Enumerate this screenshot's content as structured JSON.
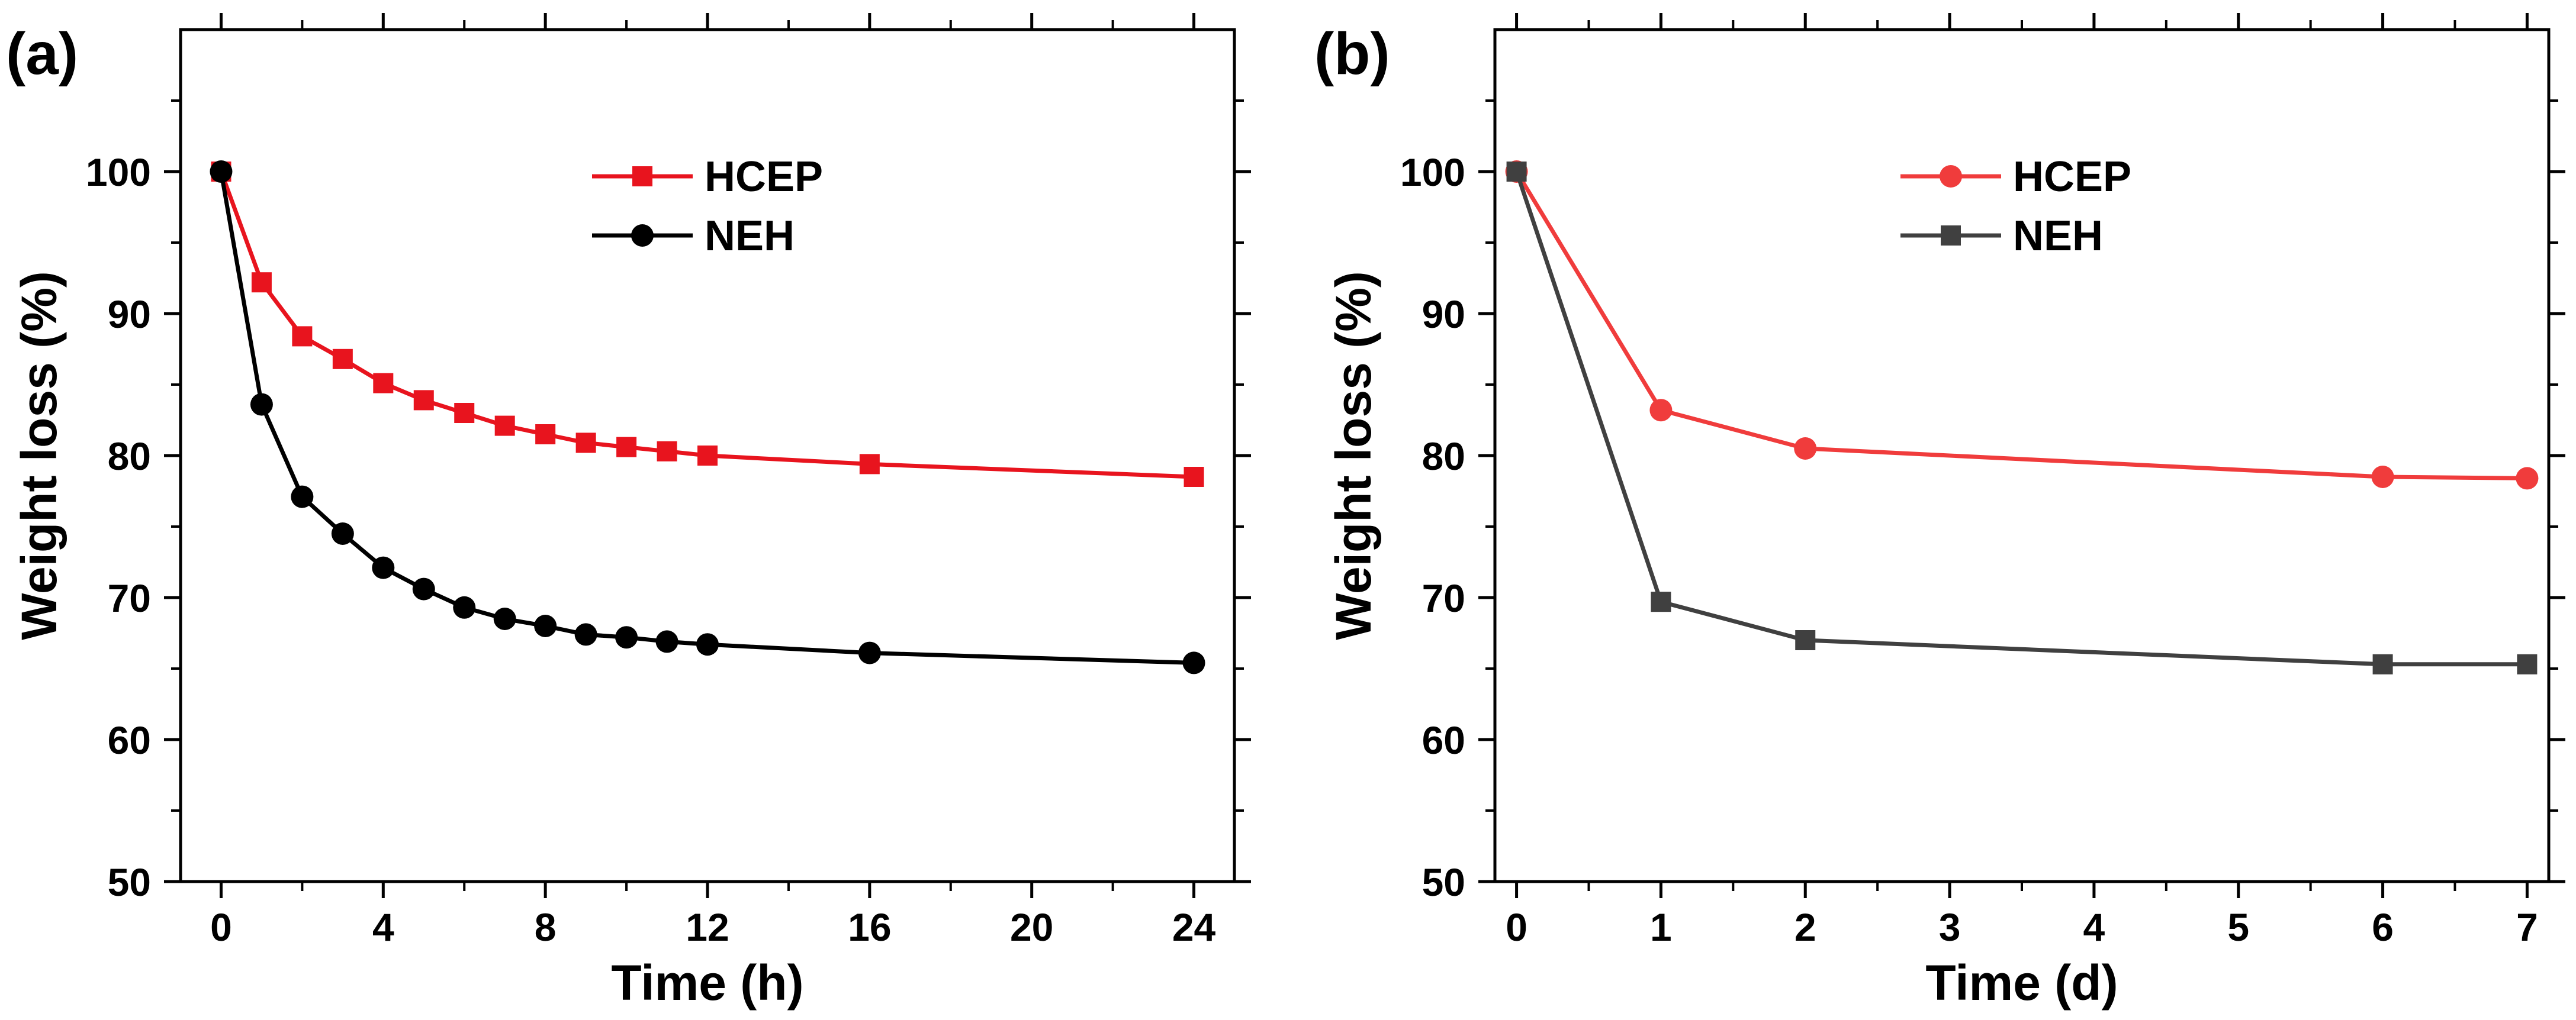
{
  "chart_data": [
    {
      "type": "line",
      "panel_label": "(a)",
      "xlabel": "Time (h)",
      "ylabel": "Weight loss (%)",
      "xlim": [
        -1,
        25
      ],
      "ylim": [
        50,
        110
      ],
      "xticks": [
        0,
        4,
        8,
        12,
        16,
        20,
        24
      ],
      "xtick_labels": [
        "0",
        "4",
        "8",
        "12",
        "16",
        "20",
        "24"
      ],
      "yticks": [
        50,
        60,
        70,
        80,
        90,
        100
      ],
      "ytick_labels": [
        "50",
        "60",
        "70",
        "80",
        "90",
        "100"
      ],
      "legend_position": "top-center",
      "series": [
        {
          "name": "HCEP",
          "color": "#e8141e",
          "marker": "square",
          "x": [
            0,
            1,
            2,
            3,
            4,
            5,
            6,
            7,
            8,
            9,
            10,
            11,
            12,
            16,
            24
          ],
          "values": [
            100,
            92.2,
            88.4,
            86.8,
            85.1,
            83.9,
            83.0,
            82.1,
            81.5,
            80.9,
            80.6,
            80.3,
            80.0,
            79.4,
            78.5
          ]
        },
        {
          "name": "NEH",
          "color": "#000000",
          "marker": "circle",
          "x": [
            0,
            1,
            2,
            3,
            4,
            5,
            6,
            7,
            8,
            9,
            10,
            11,
            12,
            16,
            24
          ],
          "values": [
            100,
            83.6,
            77.1,
            74.5,
            72.1,
            70.6,
            69.3,
            68.5,
            68.0,
            67.4,
            67.2,
            66.9,
            66.7,
            66.1,
            65.4
          ]
        }
      ]
    },
    {
      "type": "line",
      "panel_label": "(b)",
      "xlabel": "Time (d)",
      "ylabel": "Weight loss (%)",
      "xlim": [
        -0.15,
        7.15
      ],
      "ylim": [
        50,
        110
      ],
      "xticks": [
        0,
        1,
        2,
        3,
        4,
        5,
        6,
        7
      ],
      "xtick_labels": [
        "0",
        "1",
        "2",
        "3",
        "4",
        "5",
        "6",
        "7"
      ],
      "yticks": [
        50,
        60,
        70,
        80,
        90,
        100
      ],
      "ytick_labels": [
        "50",
        "60",
        "70",
        "80",
        "90",
        "100"
      ],
      "legend_position": "top-center",
      "series": [
        {
          "name": "HCEP",
          "color": "#f03c3c",
          "marker": "circle",
          "x": [
            0,
            1,
            2,
            6,
            7
          ],
          "values": [
            100,
            83.2,
            80.5,
            78.5,
            78.4
          ]
        },
        {
          "name": "NEH",
          "color": "#404040",
          "marker": "square",
          "x": [
            0,
            1,
            2,
            6,
            7
          ],
          "values": [
            100,
            69.7,
            67.0,
            65.3,
            65.3
          ]
        }
      ]
    }
  ]
}
